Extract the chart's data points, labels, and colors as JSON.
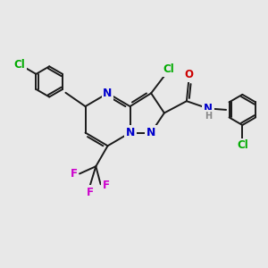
{
  "bg_color": "#e8e8e8",
  "bond_color": "#1a1a1a",
  "bond_width": 1.4,
  "atom_colors": {
    "C": "#1a1a1a",
    "N": "#0000cc",
    "O": "#cc0000",
    "Cl": "#00aa00",
    "F": "#cc00cc",
    "H": "#888888"
  },
  "font_size": 8.5
}
